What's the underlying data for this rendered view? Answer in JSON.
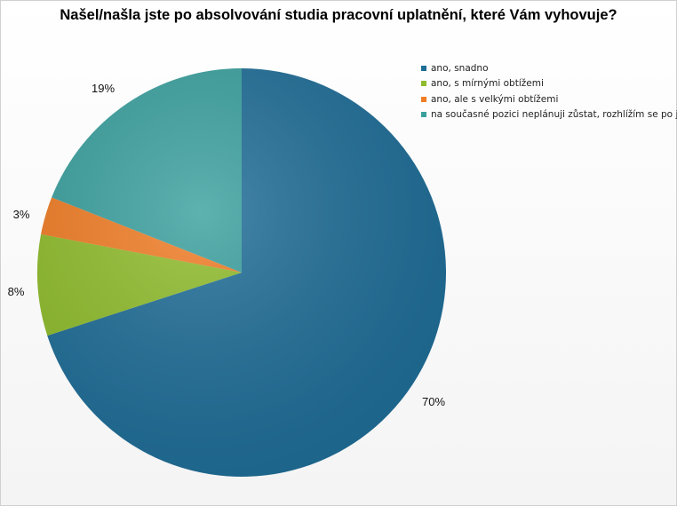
{
  "chart_data": {
    "type": "pie",
    "title": "Našel/našla jste po absolvování studia pracovní uplatnění, které Vám vyhovuje?",
    "categories": [
      "ano, snadno",
      "ano, s mírnými obtížemi",
      "ano, ale s velkými obtížemi",
      "na současné pozici neplánuji zůstat, rozhlížím se po jiné"
    ],
    "values": [
      70,
      8,
      3,
      19
    ],
    "labels": [
      "70%",
      "8%",
      "3%",
      "19%"
    ],
    "colors": [
      "#1f6d97",
      "#8fbc2b",
      "#f07c24",
      "#3aa09e"
    ],
    "legend_position": "top-right"
  }
}
